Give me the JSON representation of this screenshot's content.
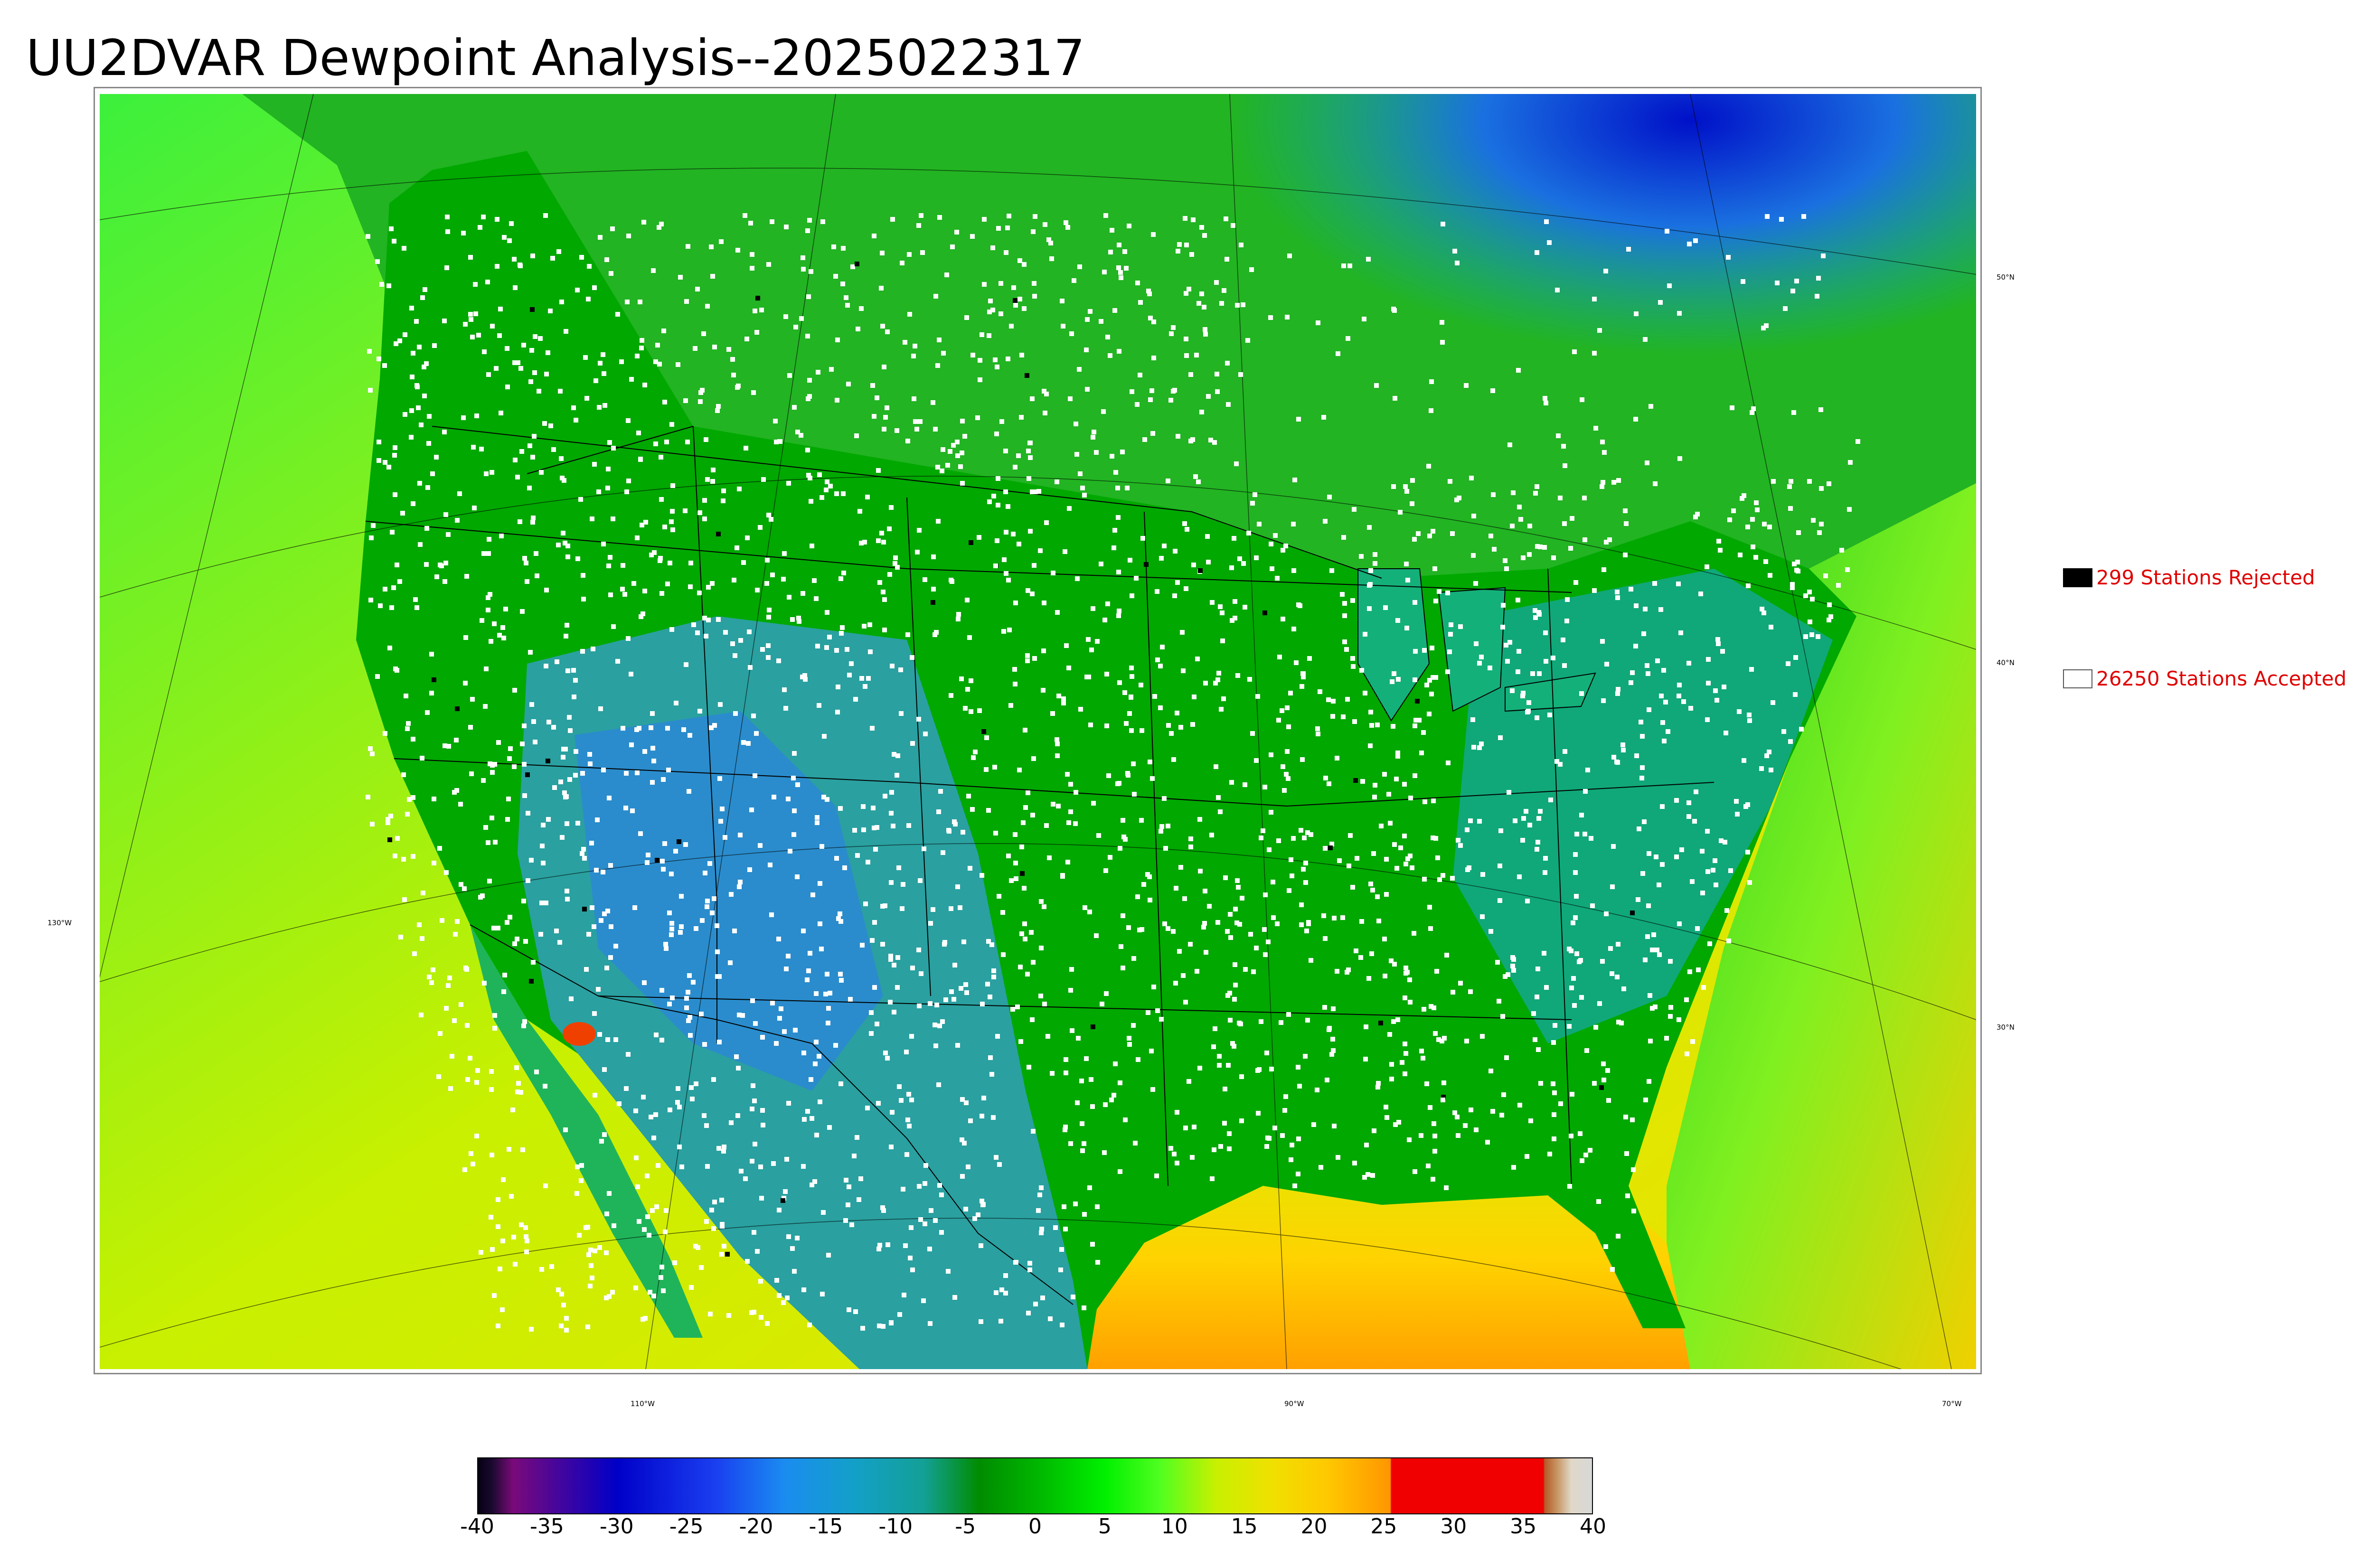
{
  "title": "UU2DVAR Dewpoint Analysis--2025022317",
  "map": {
    "lat_labels": [
      "50°N",
      "40°N",
      "30°N"
    ],
    "lon_labels": [
      "130°W",
      "110°W",
      "90°W",
      "70°W"
    ]
  },
  "legend": {
    "rejected": {
      "label": "299 Stations Rejected",
      "color": "#000000"
    },
    "accepted": {
      "label": "26250 Stations Accepted",
      "color": "#ffffff"
    }
  },
  "colorbar": {
    "ticks": [
      "-40",
      "-35",
      "-30",
      "-25",
      "-20",
      "-15",
      "-10",
      "-5",
      "0",
      "5",
      "10",
      "15",
      "20",
      "25",
      "30",
      "35",
      "40"
    ],
    "range": [
      -40,
      40
    ],
    "stops": [
      {
        "v": -40,
        "c": "#050014"
      },
      {
        "v": -39,
        "c": "#1a0a2e"
      },
      {
        "v": -37.5,
        "c": "#7a0a7a"
      },
      {
        "v": -30,
        "c": "#0000c8"
      },
      {
        "v": -23,
        "c": "#1a3ef0"
      },
      {
        "v": -18,
        "c": "#1a8cf0"
      },
      {
        "v": -13,
        "c": "#13a0c8"
      },
      {
        "v": -8,
        "c": "#13a096"
      },
      {
        "v": -4,
        "c": "#008c00"
      },
      {
        "v": 0,
        "c": "#00b400"
      },
      {
        "v": 5,
        "c": "#00f000"
      },
      {
        "v": 9,
        "c": "#50ff20"
      },
      {
        "v": 13,
        "c": "#c8f000"
      },
      {
        "v": 17,
        "c": "#f0e000"
      },
      {
        "v": 21,
        "c": "#ffc800"
      },
      {
        "v": 25.5,
        "c": "#ff9600"
      },
      {
        "v": 25.6,
        "c": "#f00000"
      },
      {
        "v": 36.5,
        "c": "#f00000"
      },
      {
        "v": 36.6,
        "c": "#b45a28"
      },
      {
        "v": 37.5,
        "c": "#c89664"
      },
      {
        "v": 38.5,
        "c": "#e0d8c8"
      },
      {
        "v": 40,
        "c": "#d8d8d8"
      }
    ]
  }
}
